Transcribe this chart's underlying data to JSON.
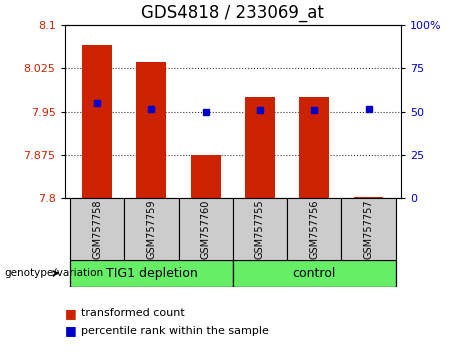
{
  "title": "GDS4818 / 233069_at",
  "samples": [
    "GSM757758",
    "GSM757759",
    "GSM757760",
    "GSM757755",
    "GSM757756",
    "GSM757757"
  ],
  "bar_values": [
    8.065,
    8.035,
    7.875,
    7.975,
    7.975,
    7.802
  ],
  "dot_values": [
    7.965,
    7.955,
    7.95,
    7.952,
    7.952,
    7.955
  ],
  "bar_color": "#cc2200",
  "dot_color": "#0000cc",
  "ylim_left": [
    7.8,
    8.1
  ],
  "ylim_right": [
    0,
    100
  ],
  "yticks_left": [
    7.8,
    7.875,
    7.95,
    8.025,
    8.1
  ],
  "yticks_right": [
    0,
    25,
    50,
    75,
    100
  ],
  "ytick_labels_right": [
    "0",
    "25",
    "50",
    "75",
    "100%"
  ],
  "group1_label": "TIG1 depletion",
  "group2_label": "control",
  "group1_samples": [
    0,
    1,
    2
  ],
  "group2_samples": [
    3,
    4,
    5
  ],
  "group_color": "#66ee66",
  "sample_box_color": "#cccccc",
  "group_label_text": "genotype/variation",
  "bar_width": 0.55,
  "legend_bar_label": "transformed count",
  "legend_dot_label": "percentile rank within the sample",
  "title_fontsize": 12,
  "tick_fontsize": 8,
  "sample_fontsize": 7,
  "group_fontsize": 9,
  "legend_fontsize": 8
}
